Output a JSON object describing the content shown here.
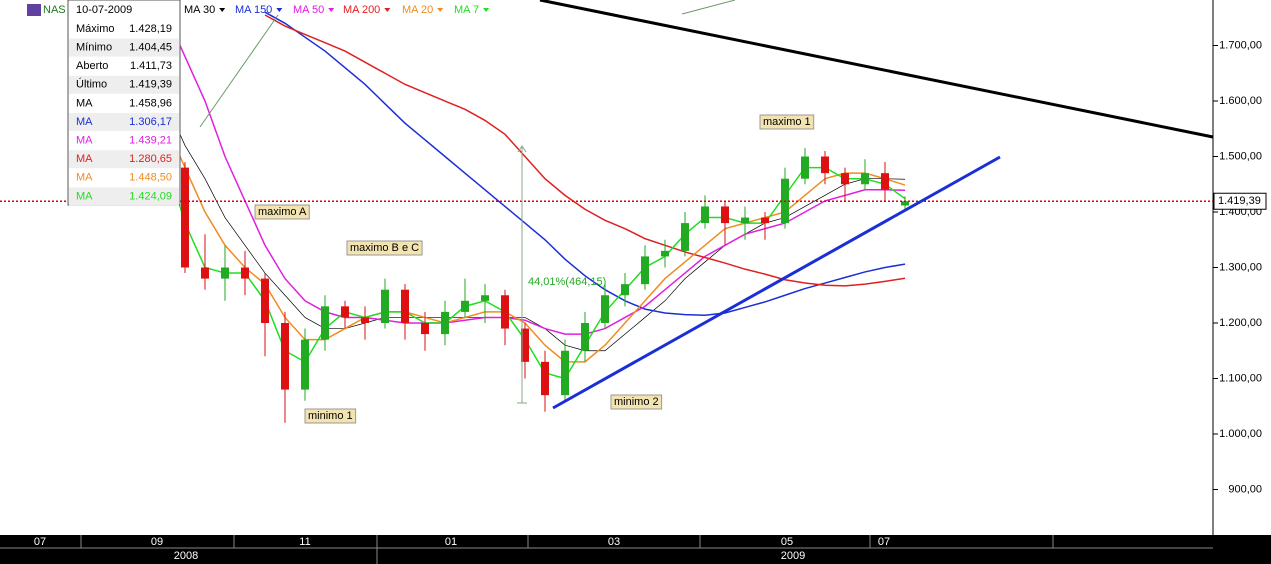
{
  "chart_data": {
    "type": "candlestick",
    "symbol": "NAS",
    "ylim": [
      818,
      1782
    ],
    "yticks": [
      {
        "value": 900,
        "label": "900,00"
      },
      {
        "value": 1000,
        "label": "1.000,00"
      },
      {
        "value": 1100,
        "label": "1.100,00"
      },
      {
        "value": 1200,
        "label": "1.200,00"
      },
      {
        "value": 1300,
        "label": "1.300,00"
      },
      {
        "value": 1400,
        "label": "1.400,00"
      },
      {
        "value": 1500,
        "label": "1.500,00"
      },
      {
        "value": 1600,
        "label": "1.600,00"
      },
      {
        "value": 1700,
        "label": "1.700,00"
      }
    ],
    "months": [
      "07",
      "09",
      "11",
      "01",
      "03",
      "05",
      "07"
    ],
    "years": [
      "2008",
      "2009"
    ],
    "up_color": "#22aa22",
    "down_color": "#dd1111",
    "candles": [
      [
        1520,
        1540,
        1460,
        1480
      ],
      [
        1480,
        1490,
        1290,
        1300
      ],
      [
        1300,
        1360,
        1260,
        1280
      ],
      [
        1280,
        1340,
        1240,
        1300
      ],
      [
        1300,
        1330,
        1250,
        1280
      ],
      [
        1280,
        1290,
        1140,
        1200
      ],
      [
        1200,
        1220,
        1020,
        1080
      ],
      [
        1080,
        1190,
        1060,
        1170
      ],
      [
        1170,
        1250,
        1150,
        1230
      ],
      [
        1230,
        1240,
        1190,
        1210
      ],
      [
        1210,
        1230,
        1170,
        1200
      ],
      [
        1200,
        1280,
        1190,
        1260
      ],
      [
        1260,
        1270,
        1170,
        1200
      ],
      [
        1200,
        1220,
        1150,
        1180
      ],
      [
        1180,
        1240,
        1160,
        1220
      ],
      [
        1220,
        1280,
        1210,
        1240
      ],
      [
        1240,
        1270,
        1200,
        1250
      ],
      [
        1250,
        1260,
        1160,
        1190
      ],
      [
        1190,
        1200,
        1100,
        1130
      ],
      [
        1130,
        1150,
        1040,
        1070
      ],
      [
        1070,
        1170,
        1060,
        1150
      ],
      [
        1150,
        1220,
        1130,
        1200
      ],
      [
        1200,
        1270,
        1190,
        1250
      ],
      [
        1250,
        1290,
        1230,
        1270
      ],
      [
        1270,
        1340,
        1260,
        1320
      ],
      [
        1320,
        1350,
        1300,
        1330
      ],
      [
        1330,
        1400,
        1320,
        1380
      ],
      [
        1380,
        1430,
        1370,
        1410
      ],
      [
        1410,
        1420,
        1340,
        1380
      ],
      [
        1380,
        1410,
        1350,
        1390
      ],
      [
        1390,
        1400,
        1350,
        1380
      ],
      [
        1380,
        1480,
        1370,
        1460
      ],
      [
        1460,
        1515,
        1450,
        1500
      ],
      [
        1500,
        1510,
        1450,
        1470
      ],
      [
        1470,
        1480,
        1420,
        1450
      ],
      [
        1450,
        1495,
        1440,
        1470
      ],
      [
        1470,
        1490,
        1420,
        1440
      ],
      [
        1411.73,
        1428.19,
        1404.45,
        1419.39
      ]
    ],
    "series": [
      {
        "name": "MA 30",
        "color": "#000000",
        "width": 0.7,
        "values": [
          1600,
          1520,
          1460,
          1390,
          1340,
          1290,
          1250,
          1210,
          1190,
          1190,
          1200,
          1210,
          1210,
          1210,
          1210,
          1210,
          1210,
          1210,
          1210,
          1190,
          1160,
          1150,
          1150,
          1180,
          1210,
          1240,
          1280,
          1310,
          1340,
          1360,
          1380,
          1390,
          1410,
          1430,
          1450,
          1460,
          1460,
          1458.96
        ]
      },
      {
        "name": "MA 150",
        "color": "#1a2fd6",
        "width": 1.5,
        "values": [
          null,
          null,
          null,
          null,
          null,
          1760,
          1740,
          1715,
          1690,
          1660,
          1630,
          1595,
          1560,
          1530,
          1500,
          1470,
          1440,
          1410,
          1380,
          1350,
          1315,
          1285,
          1260,
          1240,
          1225,
          1218,
          1215,
          1214,
          1218,
          1228,
          1238,
          1250,
          1262,
          1272,
          1282,
          1292,
          1300,
          1306.17
        ]
      },
      {
        "name": "MA 50",
        "color": "#e020e0",
        "width": 1.5,
        "values": [
          1760,
          1680,
          1600,
          1500,
          1420,
          1340,
          1280,
          1240,
          1220,
          1210,
          1210,
          1205,
          1200,
          1200,
          1200,
          1205,
          1210,
          1210,
          1205,
          1190,
          1180,
          1180,
          1190,
          1210,
          1230,
          1260,
          1290,
          1320,
          1340,
          1360,
          1370,
          1380,
          1400,
          1420,
          1430,
          1440,
          1440,
          1439.21
        ]
      },
      {
        "name": "MA 200",
        "color": "#e02020",
        "width": 1.5,
        "values": [
          null,
          null,
          null,
          null,
          null,
          1755,
          1735,
          1720,
          1705,
          1690,
          1670,
          1650,
          1630,
          1615,
          1600,
          1585,
          1565,
          1540,
          1500,
          1460,
          1430,
          1405,
          1385,
          1370,
          1352,
          1340,
          1328,
          1318,
          1308,
          1297,
          1288,
          1278,
          1272,
          1268,
          1267,
          1270,
          1275,
          1280.65
        ]
      },
      {
        "name": "MA 20",
        "color": "#f08c20",
        "width": 1.5,
        "values": [
          1560,
          1480,
          1400,
          1340,
          1300,
          1270,
          1210,
          1170,
          1170,
          1190,
          1210,
          1220,
          1220,
          1210,
          1200,
          1210,
          1220,
          1220,
          1200,
          1160,
          1130,
          1130,
          1160,
          1200,
          1240,
          1280,
          1310,
          1340,
          1370,
          1380,
          1390,
          1400,
          1430,
          1460,
          1470,
          1470,
          1460,
          1448.5
        ]
      },
      {
        "name": "MA 7",
        "color": "#22dd22",
        "width": 1.5,
        "values": [
          1500,
          1380,
          1300,
          1290,
          1290,
          1240,
          1150,
          1130,
          1190,
          1220,
          1210,
          1220,
          1220,
          1200,
          1200,
          1230,
          1240,
          1220,
          1170,
          1110,
          1100,
          1160,
          1220,
          1260,
          1300,
          1320,
          1360,
          1390,
          1390,
          1380,
          1380,
          1430,
          1480,
          1480,
          1460,
          1460,
          1450,
          1424.09
        ]
      }
    ],
    "last_label": "1.419,39",
    "tooltip": {
      "date": "10-07-2009",
      "rows": [
        [
          "Máximo",
          "1.428,19"
        ],
        [
          "Mínimo",
          "1.404,45"
        ],
        [
          "Aberto",
          "1.411,73"
        ],
        [
          "Último",
          "1.419,39"
        ],
        [
          "MA",
          "1.458,96"
        ],
        [
          "MA",
          "1.306,17"
        ],
        [
          "MA",
          "1.439,21"
        ],
        [
          "MA",
          "1.280,65"
        ],
        [
          "MA",
          "1.448,50"
        ],
        [
          "MA",
          "1.424,09"
        ]
      ]
    },
    "annotations": [
      "maximo A",
      "maximo B e C",
      "minimo 1",
      "minimo 2",
      "maximo 1",
      "44,01%(464,15)"
    ]
  }
}
